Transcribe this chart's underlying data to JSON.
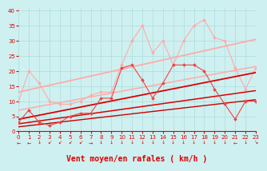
{
  "background_color": "#cff0f0",
  "grid_color": "#aadddd",
  "xlabel": "Vent moyen/en rafales ( km/h )",
  "xlabel_color": "#dd0000",
  "xlabel_fontsize": 7,
  "yticks": [
    0,
    5,
    10,
    15,
    20,
    25,
    30,
    35,
    40
  ],
  "xticks": [
    0,
    1,
    2,
    3,
    4,
    5,
    6,
    7,
    8,
    9,
    10,
    11,
    12,
    13,
    14,
    15,
    16,
    17,
    18,
    19,
    20,
    21,
    22,
    23
  ],
  "ylim": [
    0,
    41
  ],
  "xlim": [
    0,
    23
  ],
  "lines": [
    {
      "comment": "light pink scattered line with diamonds - top",
      "x": [
        0,
        1,
        2,
        3,
        4,
        5,
        6,
        7,
        8,
        9,
        10,
        11,
        12,
        13,
        14,
        15,
        16,
        17,
        18,
        19,
        20,
        21,
        22,
        23
      ],
      "y": [
        10,
        20,
        16,
        10,
        9,
        9,
        10,
        12,
        13,
        13,
        22,
        30,
        35,
        26,
        30,
        22,
        30,
        35,
        37,
        31,
        30,
        21,
        14,
        21
      ],
      "color": "#ffaaaa",
      "lw": 0.8,
      "marker": "D",
      "ms": 2.0,
      "zorder": 4
    },
    {
      "comment": "light pink straight regression line - upper",
      "x": [
        0,
        23
      ],
      "y": [
        13.0,
        30.5
      ],
      "color": "#ffaaaa",
      "lw": 1.3,
      "marker": null,
      "ms": 0,
      "zorder": 3
    },
    {
      "comment": "light pink straight regression line - lower",
      "x": [
        0,
        23
      ],
      "y": [
        7.0,
        21.5
      ],
      "color": "#ffaaaa",
      "lw": 1.1,
      "marker": null,
      "ms": 0,
      "zorder": 3
    },
    {
      "comment": "medium red scattered line with diamonds",
      "x": [
        0,
        1,
        2,
        3,
        4,
        5,
        6,
        7,
        8,
        9,
        10,
        11,
        12,
        13,
        14,
        15,
        16,
        17,
        18,
        19,
        20,
        21,
        22,
        23
      ],
      "y": [
        3,
        7,
        3,
        2,
        3,
        5,
        6,
        6,
        11,
        11,
        21,
        22,
        17,
        11,
        16,
        22,
        22,
        22,
        20,
        14,
        9,
        4,
        10,
        10
      ],
      "color": "#ee4444",
      "lw": 0.8,
      "marker": "D",
      "ms": 2.0,
      "zorder": 6
    },
    {
      "comment": "dark red straight regression line - upper",
      "x": [
        0,
        23
      ],
      "y": [
        4.0,
        19.5
      ],
      "color": "#dd0000",
      "lw": 1.3,
      "marker": null,
      "ms": 0,
      "zorder": 5
    },
    {
      "comment": "dark red straight regression line - lower",
      "x": [
        0,
        23
      ],
      "y": [
        2.5,
        13.5
      ],
      "color": "#dd0000",
      "lw": 1.1,
      "marker": null,
      "ms": 0,
      "zorder": 5
    },
    {
      "comment": "dark red straight regression line - bottom",
      "x": [
        0,
        23
      ],
      "y": [
        1.5,
        10.5
      ],
      "color": "#cc0000",
      "lw": 1.0,
      "marker": null,
      "ms": 0,
      "zorder": 5
    }
  ],
  "wind_arrows": [
    "←",
    "←",
    "↓",
    "↙",
    "↙",
    "↙",
    "↙",
    "→",
    "↓",
    "↓",
    "↓",
    "↓",
    "↓",
    "↓",
    "↓",
    "↓",
    "↓",
    "↓",
    "↓",
    "↓",
    "↓",
    "←",
    "↓",
    "↘"
  ],
  "tick_fontsize": 5,
  "tick_color": "#dd0000"
}
